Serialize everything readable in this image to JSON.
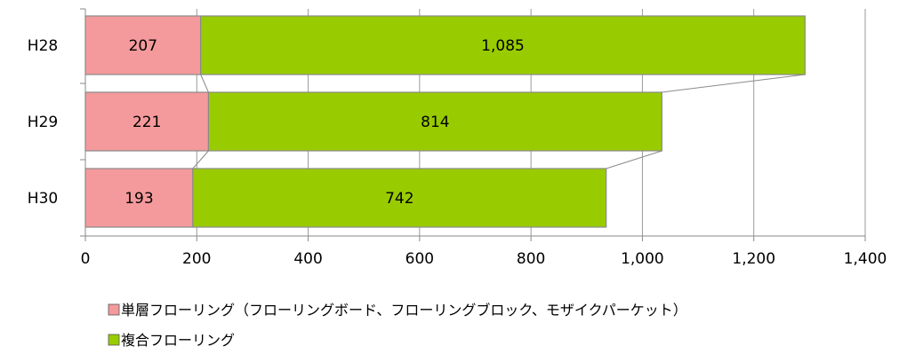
{
  "chart_data": {
    "type": "bar",
    "orientation": "horizontal",
    "stacked": true,
    "categories": [
      "H28",
      "H29",
      "H30"
    ],
    "series": [
      {
        "name": "単層フローリング（フローリングボード、フローリングブロック、モザイクパーケット）",
        "values": [
          207,
          221,
          193
        ],
        "color": "#f49a9c"
      },
      {
        "name": "複合フローリング",
        "values": [
          1085,
          814,
          742
        ],
        "color": "#99cc00"
      }
    ],
    "data_labels": {
      "s0": [
        "207",
        "221",
        "193"
      ],
      "s1": [
        "1,085",
        "814",
        "742"
      ]
    },
    "xlim": [
      0,
      1400
    ],
    "x_ticks": [
      0,
      200,
      400,
      600,
      800,
      1000,
      1200,
      1400
    ],
    "x_tick_labels": [
      "0",
      "200",
      "400",
      "600",
      "800",
      "1,000",
      "1,200",
      "1,400"
    ],
    "grid": "vertical",
    "series_lines": true,
    "legend_position": "bottom",
    "title": "",
    "xlabel": "",
    "ylabel": ""
  }
}
